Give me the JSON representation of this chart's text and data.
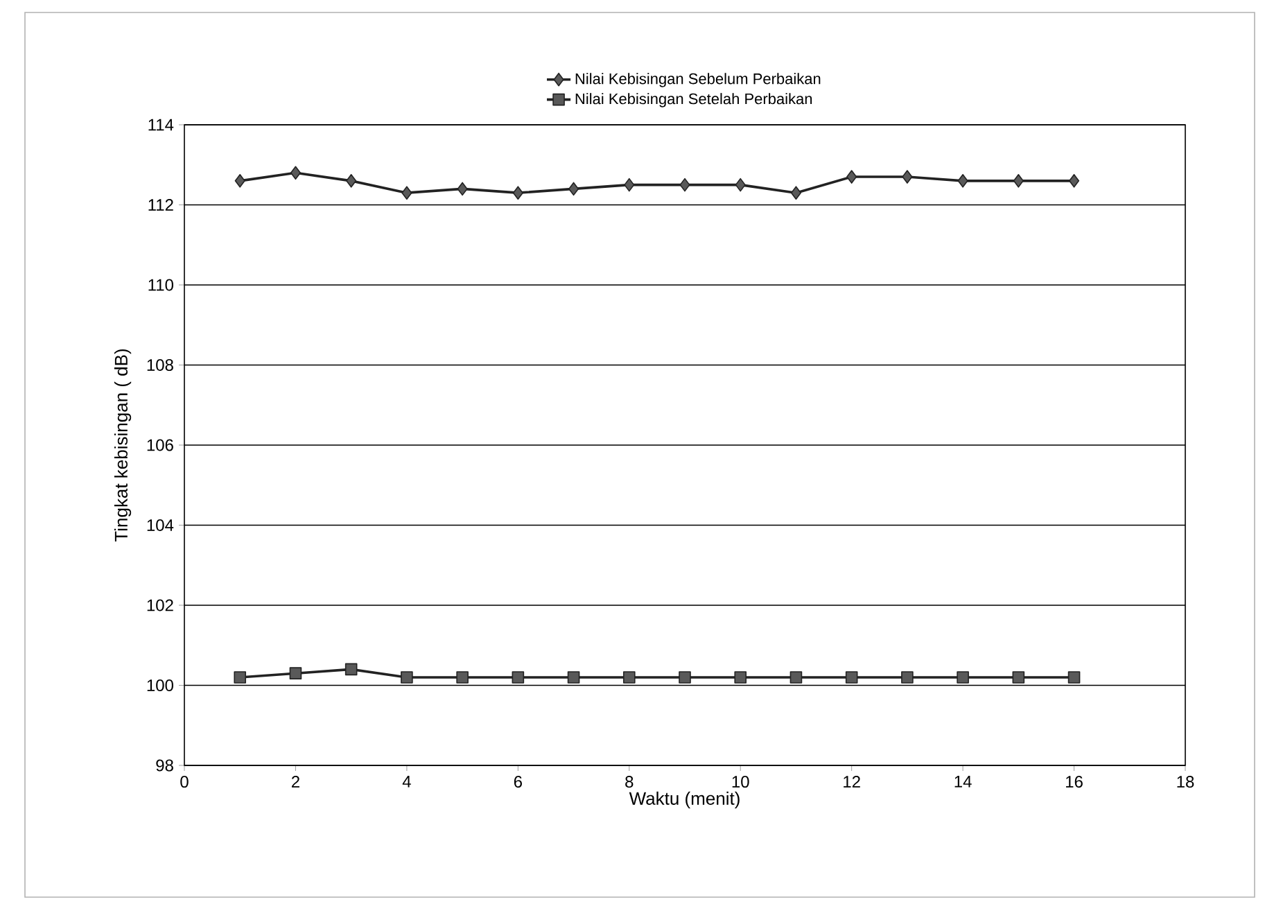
{
  "chart_data": {
    "type": "line",
    "xlabel": "Waktu (menit)",
    "ylabel": "Tingkat kebisingan ( dB)",
    "x": [
      1,
      2,
      3,
      4,
      5,
      6,
      7,
      8,
      9,
      10,
      11,
      12,
      13,
      14,
      15,
      16
    ],
    "series": [
      {
        "name": "Nilai Kebisingan Sebelum Perbaikan",
        "color": "#222222",
        "marker": "diamond",
        "values": [
          112.6,
          112.8,
          112.6,
          112.3,
          112.4,
          112.3,
          112.4,
          112.5,
          112.5,
          112.5,
          112.3,
          112.7,
          112.7,
          112.6,
          112.6,
          112.6
        ]
      },
      {
        "name": "Nilai Kebisingan Setelah Perbaikan",
        "color": "#222222",
        "marker": "square",
        "values": [
          100.2,
          100.3,
          100.4,
          100.2,
          100.2,
          100.2,
          100.2,
          100.2,
          100.2,
          100.2,
          100.2,
          100.2,
          100.2,
          100.2,
          100.2,
          100.2
        ]
      }
    ],
    "xlim": [
      0,
      18
    ],
    "xticks": [
      0,
      2,
      4,
      6,
      8,
      10,
      12,
      14,
      16,
      18
    ],
    "ylim": [
      98,
      114
    ],
    "yticks": [
      98,
      100,
      102,
      104,
      106,
      108,
      110,
      112,
      114
    ],
    "grid": "y",
    "legend": "top",
    "line_style": "solid"
  }
}
